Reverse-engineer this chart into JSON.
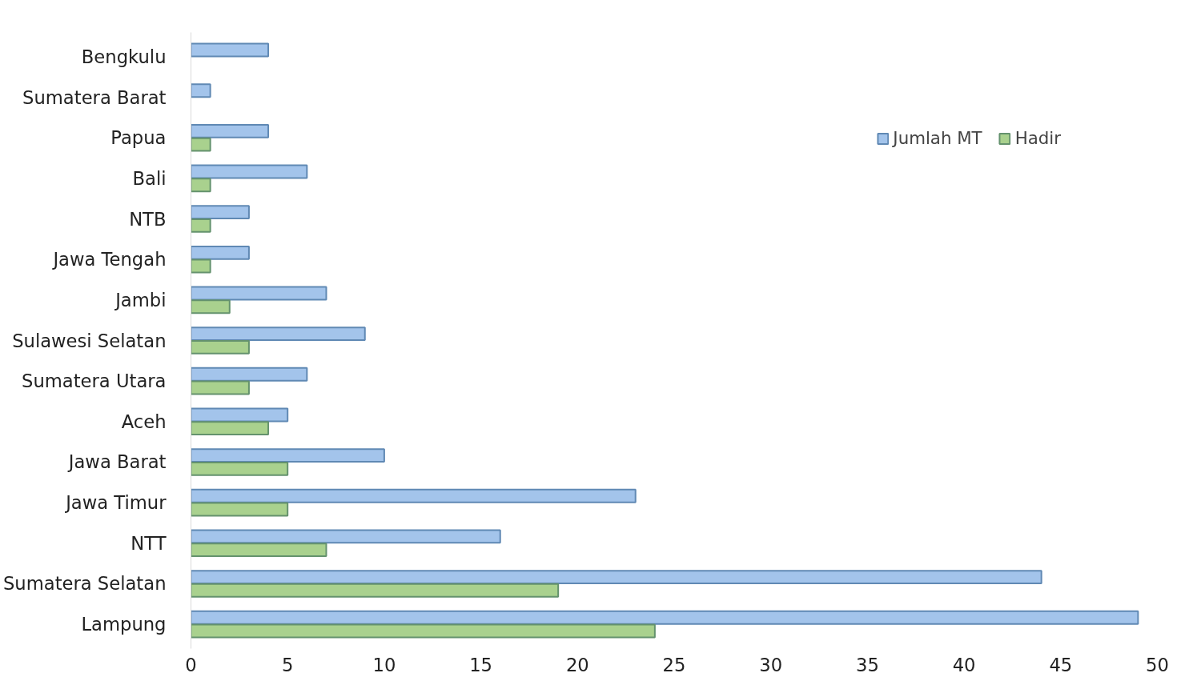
{
  "chart_data": {
    "type": "bar",
    "orientation": "horizontal",
    "categories": [
      "Bengkulu",
      "Sumatera Barat",
      "Papua",
      "Bali",
      "NTB",
      "Jawa Tengah",
      "Jambi",
      "Sulawesi Selatan",
      "Sumatera Utara",
      "Aceh",
      "Jawa Barat",
      "Jawa Timur",
      "NTT",
      "Sumatera Selatan",
      "Lampung"
    ],
    "series": [
      {
        "name": "Jumlah MT",
        "color": "#a3c4eb",
        "values": [
          4,
          1,
          4,
          6,
          3,
          3,
          7,
          9,
          6,
          5,
          10,
          23,
          16,
          44,
          49
        ]
      },
      {
        "name": "Hadir",
        "color": "#a9d18e",
        "values": [
          null,
          null,
          1,
          1,
          1,
          1,
          2,
          3,
          3,
          4,
          5,
          5,
          7,
          19,
          24
        ]
      }
    ],
    "xlim": [
      0,
      50
    ],
    "xticks": [
      0,
      5,
      10,
      15,
      20,
      25,
      30,
      35,
      40,
      45,
      50
    ],
    "grid": false,
    "legend": "top right"
  }
}
